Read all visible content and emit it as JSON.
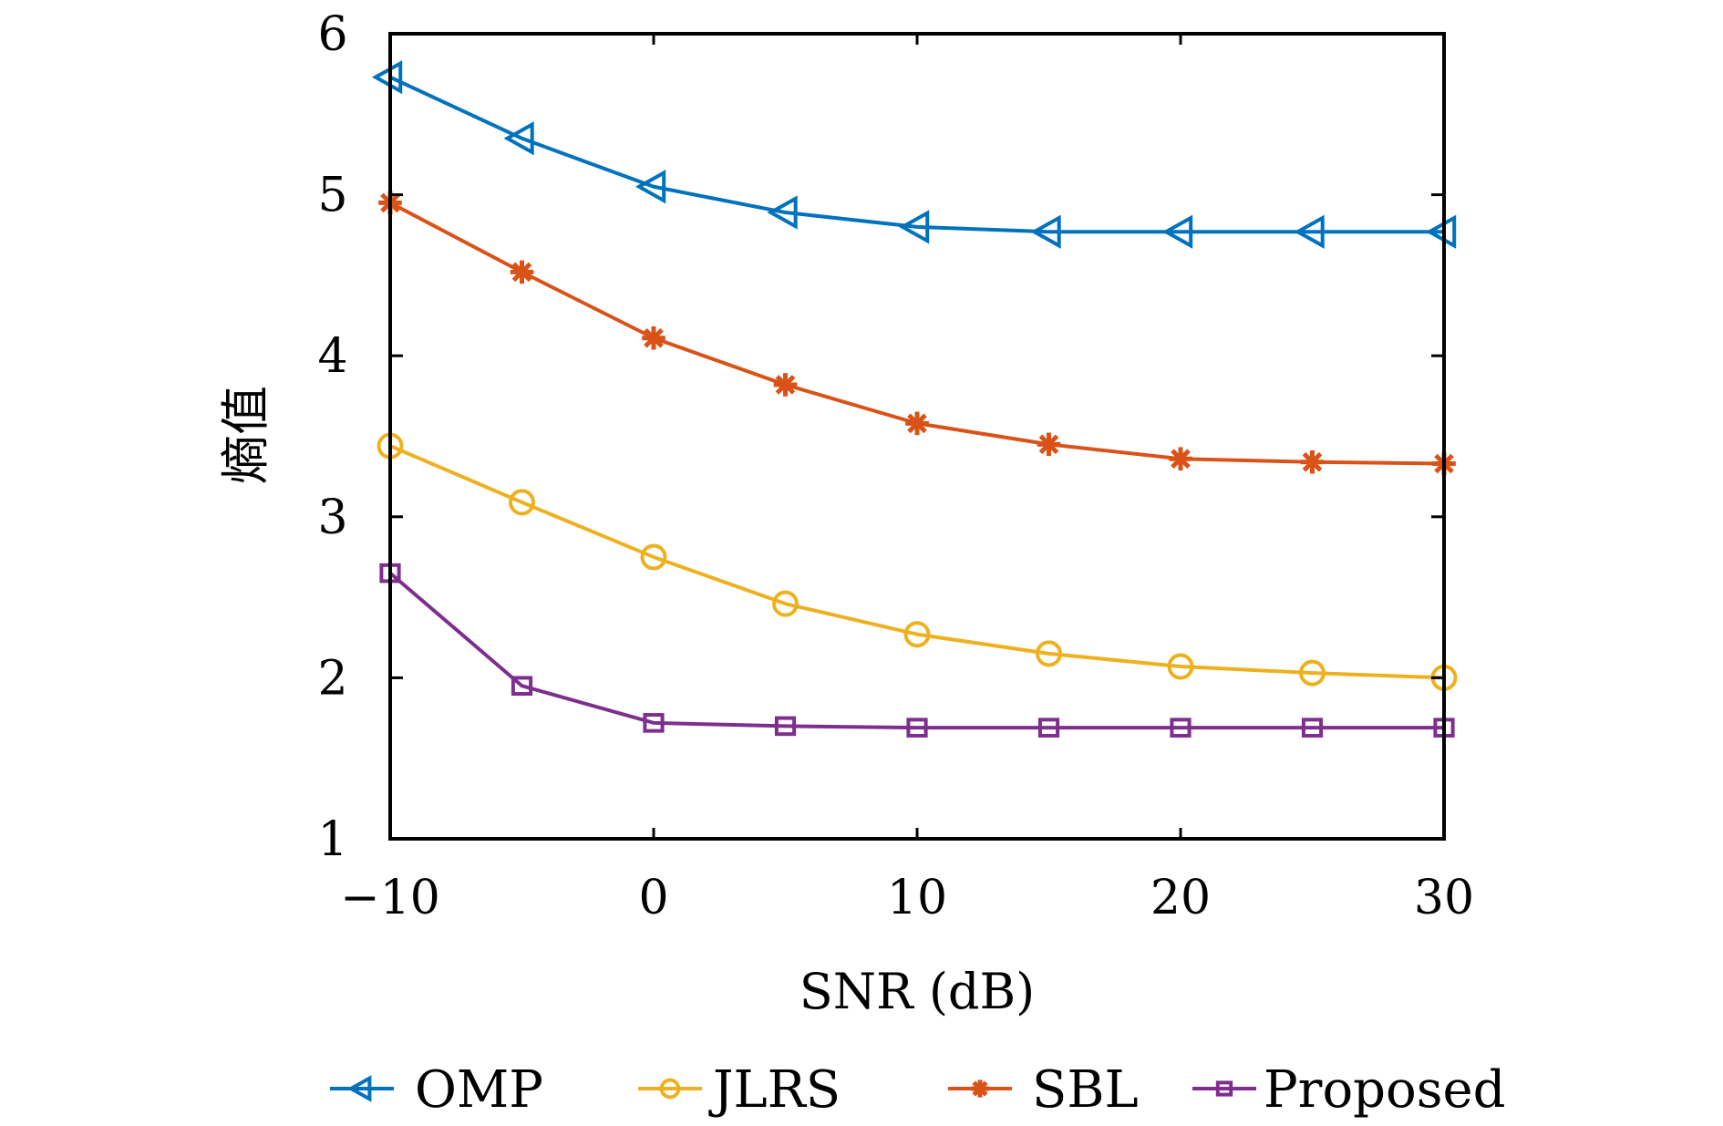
{
  "chart_data": {
    "type": "line",
    "title": "",
    "xlabel": "SNR (dB)",
    "ylabel": "熵值",
    "x": [
      -10,
      -5,
      0,
      5,
      10,
      15,
      20,
      25,
      30
    ],
    "xlim": [
      -10,
      30
    ],
    "ylim": [
      1,
      6
    ],
    "xticks": [
      -10,
      0,
      10,
      20,
      30
    ],
    "xtick_labels": [
      "−10",
      "0",
      "10",
      "20",
      "30"
    ],
    "yticks": [
      1,
      2,
      3,
      4,
      5,
      6
    ],
    "ytick_labels": [
      "1",
      "2",
      "3",
      "4",
      "5",
      "6"
    ],
    "grid": false,
    "legend_position": "bottom",
    "series": [
      {
        "name": "OMP",
        "color": "#0072BD",
        "marker": "triangle-left",
        "values": [
          5.73,
          5.35,
          5.05,
          4.89,
          4.8,
          4.77,
          4.77,
          4.77,
          4.77
        ]
      },
      {
        "name": "JLRS",
        "color": "#EDB120",
        "marker": "circle",
        "values": [
          3.44,
          3.09,
          2.75,
          2.46,
          2.27,
          2.15,
          2.07,
          2.03,
          2.0
        ]
      },
      {
        "name": "SBL",
        "color": "#D95319",
        "marker": "asterisk",
        "values": [
          4.95,
          4.52,
          4.11,
          3.82,
          3.58,
          3.45,
          3.36,
          3.34,
          3.33
        ]
      },
      {
        "name": "Proposed",
        "color": "#7E2F8E",
        "marker": "square",
        "values": [
          2.65,
          1.95,
          1.72,
          1.7,
          1.69,
          1.69,
          1.69,
          1.69,
          1.69
        ]
      }
    ]
  }
}
